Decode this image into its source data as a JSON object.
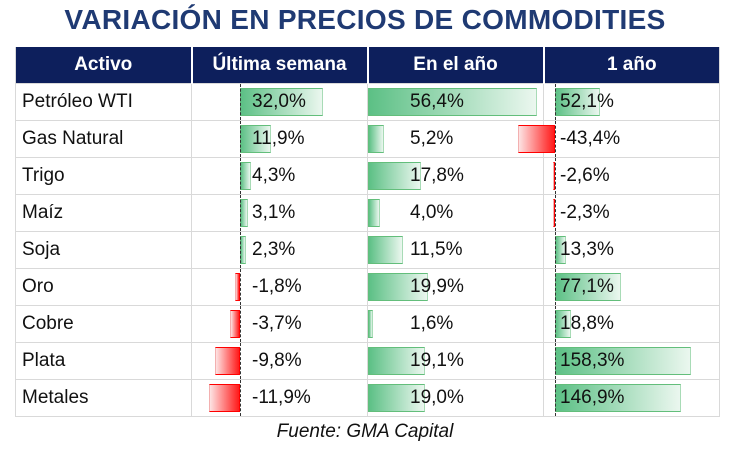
{
  "title": "VARIACIÓN EN PRECIOS DE COMMODITIES",
  "source": "Fuente: GMA Capital",
  "chart_data": {
    "type": "table",
    "columns": [
      "Activo",
      "Última semana",
      "En el año",
      "1 año"
    ],
    "rows": [
      {
        "name": "Petróleo WTI",
        "values": [
          32.0,
          56.4,
          52.1
        ],
        "labels": [
          "32,0%",
          "56,4%",
          "52,1%"
        ]
      },
      {
        "name": "Gas Natural",
        "values": [
          11.9,
          5.2,
          -43.4
        ],
        "labels": [
          "11,9%",
          "5,2%",
          "-43,4%"
        ]
      },
      {
        "name": "Trigo",
        "values": [
          4.3,
          17.8,
          -2.6
        ],
        "labels": [
          "4,3%",
          "17,8%",
          "-2,6%"
        ]
      },
      {
        "name": "Maíz",
        "values": [
          3.1,
          4.0,
          -2.3
        ],
        "labels": [
          "3,1%",
          "4,0%",
          "-2,3%"
        ]
      },
      {
        "name": "Soja",
        "values": [
          2.3,
          11.5,
          13.3
        ],
        "labels": [
          "2,3%",
          "11,5%",
          "13,3%"
        ]
      },
      {
        "name": "Oro",
        "values": [
          -1.8,
          19.9,
          77.1
        ],
        "labels": [
          "-1,8%",
          "19,9%",
          "77,1%"
        ]
      },
      {
        "name": "Cobre",
        "values": [
          -3.7,
          1.6,
          18.8
        ],
        "labels": [
          "-3,7%",
          "1,6%",
          "18,8%"
        ]
      },
      {
        "name": "Plata",
        "values": [
          -9.8,
          19.1,
          158.3
        ],
        "labels": [
          "-9,8%",
          "19,1%",
          "158,3%"
        ]
      },
      {
        "name": "Metales",
        "values": [
          -11.9,
          19.0,
          146.9
        ],
        "labels": [
          "-11,9%",
          "19,0%",
          "146,9%"
        ]
      }
    ],
    "positive_color": "#63be7b",
    "negative_color": "#ff0000",
    "header_color": "#0d1f5c"
  }
}
